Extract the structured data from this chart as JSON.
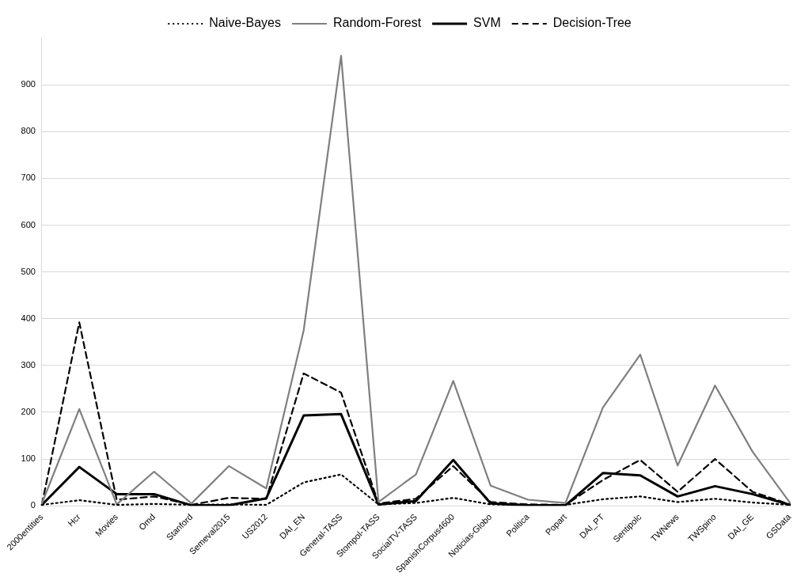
{
  "chart_data": {
    "type": "line",
    "categories": [
      "2000entities",
      "Hcr",
      "Movies",
      "Omd",
      "Stanford",
      "Semeval2015",
      "US2012",
      "DAI_EN",
      "General-TASS",
      "Stompol-TASS",
      "SocialTV-TASS",
      "SpanishCorpus4600",
      "Noticias-Globo",
      "Politica",
      "Popart",
      "DAI_PT",
      "Sentipolc",
      "TWNews",
      "TWSpino",
      "DAI_GE",
      "GSData"
    ],
    "series": [
      {
        "name": "Naive-Bayes",
        "color": "#000000",
        "line_style": "dotted",
        "values": [
          2,
          12,
          2,
          4,
          2,
          3,
          2,
          50,
          67,
          3,
          6,
          17,
          3,
          2,
          2,
          14,
          20,
          8,
          15,
          7,
          2
        ]
      },
      {
        "name": "Random-Forest",
        "color": "#7f7f7f",
        "line_style": "solid",
        "values": [
          5,
          207,
          3,
          73,
          5,
          85,
          37,
          375,
          962,
          8,
          67,
          267,
          43,
          13,
          6,
          210,
          323,
          86,
          257,
          116,
          7
        ]
      },
      {
        "name": "SVM",
        "color": "#000000",
        "line_style": "solid",
        "values": [
          2,
          83,
          25,
          25,
          1,
          1,
          16,
          193,
          196,
          3,
          10,
          98,
          5,
          1,
          1,
          70,
          65,
          20,
          42,
          25,
          2
        ]
      },
      {
        "name": "Decision-Tree",
        "color": "#000000",
        "line_style": "dashed",
        "values": [
          3,
          392,
          13,
          20,
          2,
          17,
          15,
          283,
          242,
          5,
          15,
          85,
          8,
          3,
          2,
          55,
          98,
          30,
          100,
          30,
          3
        ]
      }
    ],
    "ylim": [
      0,
      1000
    ],
    "yticks": [
      0,
      100,
      200,
      300,
      400,
      500,
      600,
      700,
      800,
      900
    ],
    "grid": "y",
    "legend": "top",
    "marker": "none"
  }
}
